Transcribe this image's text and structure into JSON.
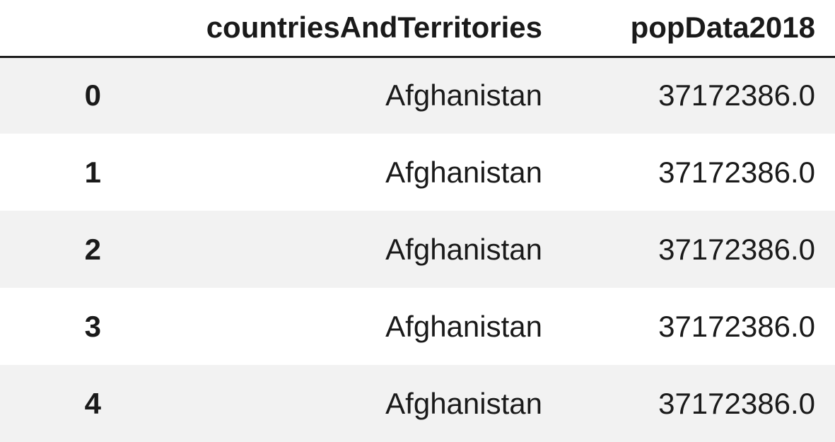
{
  "table": {
    "columns": [
      "countriesAndTerritories",
      "popData2018"
    ],
    "rows": [
      {
        "index": "0",
        "countriesAndTerritories": "Afghanistan",
        "popData2018": "37172386.0"
      },
      {
        "index": "1",
        "countriesAndTerritories": "Afghanistan",
        "popData2018": "37172386.0"
      },
      {
        "index": "2",
        "countriesAndTerritories": "Afghanistan",
        "popData2018": "37172386.0"
      },
      {
        "index": "3",
        "countriesAndTerritories": "Afghanistan",
        "popData2018": "37172386.0"
      },
      {
        "index": "4",
        "countriesAndTerritories": "Afghanistan",
        "popData2018": "37172386.0"
      }
    ]
  }
}
